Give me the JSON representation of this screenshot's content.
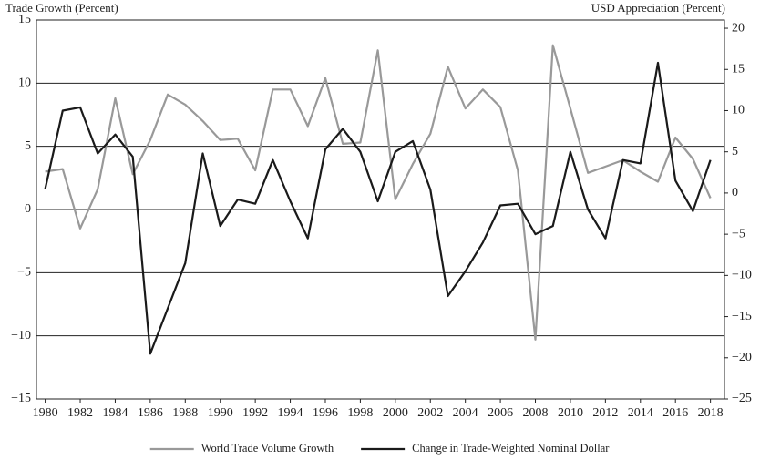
{
  "chart_data": {
    "type": "line",
    "y_title": "Trade Growth (Percent)",
    "y2_title": "USD Appreciation (Percent)",
    "x": [
      1980,
      1981,
      1982,
      1983,
      1984,
      1985,
      1986,
      1987,
      1988,
      1989,
      1990,
      1991,
      1992,
      1993,
      1994,
      1995,
      1996,
      1997,
      1998,
      1999,
      2000,
      2001,
      2002,
      2003,
      2004,
      2005,
      2006,
      2007,
      2008,
      2009,
      2010,
      2011,
      2012,
      2013,
      2014,
      2015,
      2016,
      2017,
      2018
    ],
    "xlim": [
      1979.5,
      2018.8
    ],
    "xticks": [
      1980,
      1982,
      1984,
      1986,
      1988,
      1990,
      1992,
      1994,
      1996,
      1998,
      2000,
      2002,
      2004,
      2006,
      2008,
      2010,
      2012,
      2014,
      2016,
      2018
    ],
    "ylim": [
      -15,
      15
    ],
    "yticks": [
      {
        "value": -15,
        "label": "−15"
      },
      {
        "value": -10,
        "label": "−10"
      },
      {
        "value": -5,
        "label": "−5"
      },
      0,
      5,
      10,
      15
    ],
    "y2lim": [
      -25,
      21
    ],
    "y2ticks": [
      {
        "value": -25,
        "label": "−25"
      },
      {
        "value": -20,
        "label": "−20"
      },
      {
        "value": -15,
        "label": "−15"
      },
      {
        "value": -10,
        "label": "−10"
      },
      {
        "value": -5,
        "label": "−5"
      },
      0,
      5,
      10,
      15,
      20
    ],
    "grid": true,
    "legend": "bottom",
    "series": [
      {
        "name": "World Trade Volume Growth",
        "color": "#999999",
        "values": [
          3.0,
          3.2,
          -1.5,
          1.6,
          8.8,
          2.8,
          5.5,
          9.1,
          8.3,
          7.0,
          5.5,
          5.6,
          3.1,
          9.5,
          9.5,
          6.6,
          10.4,
          5.2,
          5.3,
          12.6,
          0.8,
          3.6,
          6.0,
          11.3,
          8.0,
          9.5,
          8.1,
          3.1,
          -10.3,
          13.0,
          8.0,
          2.9,
          3.4,
          3.9,
          3.0,
          2.2,
          5.7,
          4.0,
          0.9
        ]
      },
      {
        "name": "Change in Trade-Weighted Nominal Dollar",
        "color": "#1a1a1a",
        "axis": "y2",
        "values": [
          0.5,
          10.0,
          10.4,
          4.8,
          7.1,
          4.4,
          -19.5,
          -14,
          -8.5,
          4.8,
          -4,
          -0.8,
          -1.3,
          4,
          -1,
          -5.5,
          5.3,
          7.8,
          5,
          -1,
          5,
          6.3,
          0.4,
          -12.5,
          -9.5,
          -6,
          -1.5,
          -1.3,
          -5,
          -4,
          5,
          -2,
          -5.5,
          4,
          3.6,
          15.8,
          1.5,
          -2.2,
          4.0
        ]
      }
    ]
  }
}
